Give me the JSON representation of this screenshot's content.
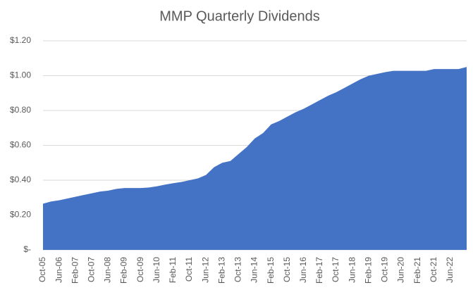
{
  "chart_data": {
    "type": "area",
    "title": "MMP Quarterly Dividends",
    "categories": [
      "Oct-05",
      null,
      "Jun-06",
      null,
      "Feb-07",
      null,
      "Oct-07",
      null,
      "Jun-08",
      null,
      "Feb-09",
      null,
      "Oct-09",
      null,
      "Jun-10",
      null,
      "Feb-11",
      null,
      "Oct-11",
      null,
      "Jun-12",
      null,
      "Feb-13",
      null,
      "Oct-13",
      null,
      "Jun-14",
      null,
      "Feb-15",
      null,
      "Oct-15",
      null,
      "Jun-16",
      null,
      "Feb-17",
      null,
      "Oct-17",
      null,
      "Jun-18",
      null,
      "Feb-19",
      null,
      "Oct-19",
      null,
      "Jun-20",
      null,
      "Feb-21",
      null,
      "Oct-21",
      null,
      "Jun-22",
      null,
      null
    ],
    "values": [
      0.265,
      0.278,
      0.285,
      0.295,
      0.305,
      0.315,
      0.325,
      0.335,
      0.34,
      0.35,
      0.355,
      0.355,
      0.355,
      0.358,
      0.365,
      0.375,
      0.383,
      0.39,
      0.4,
      0.41,
      0.43,
      0.475,
      0.5,
      0.51,
      0.55,
      0.59,
      0.64,
      0.67,
      0.72,
      0.74,
      0.765,
      0.79,
      0.81,
      0.835,
      0.86,
      0.885,
      0.905,
      0.93,
      0.955,
      0.98,
      1.0,
      1.01,
      1.02,
      1.028,
      1.028,
      1.028,
      1.028,
      1.028,
      1.038,
      1.038,
      1.038,
      1.038,
      1.05
    ],
    "color": "#4472c4",
    "ylim": [
      0,
      1.2
    ],
    "yticks": [
      {
        "value": 0,
        "label": "$-"
      },
      {
        "value": 0.2,
        "label": "$0.20"
      },
      {
        "value": 0.4,
        "label": "$0.40"
      },
      {
        "value": 0.6,
        "label": "$0.60"
      },
      {
        "value": 0.8,
        "label": "$0.80"
      },
      {
        "value": 1.0,
        "label": "$1.00"
      },
      {
        "value": 1.2,
        "label": "$1.20"
      }
    ],
    "grid": true
  }
}
